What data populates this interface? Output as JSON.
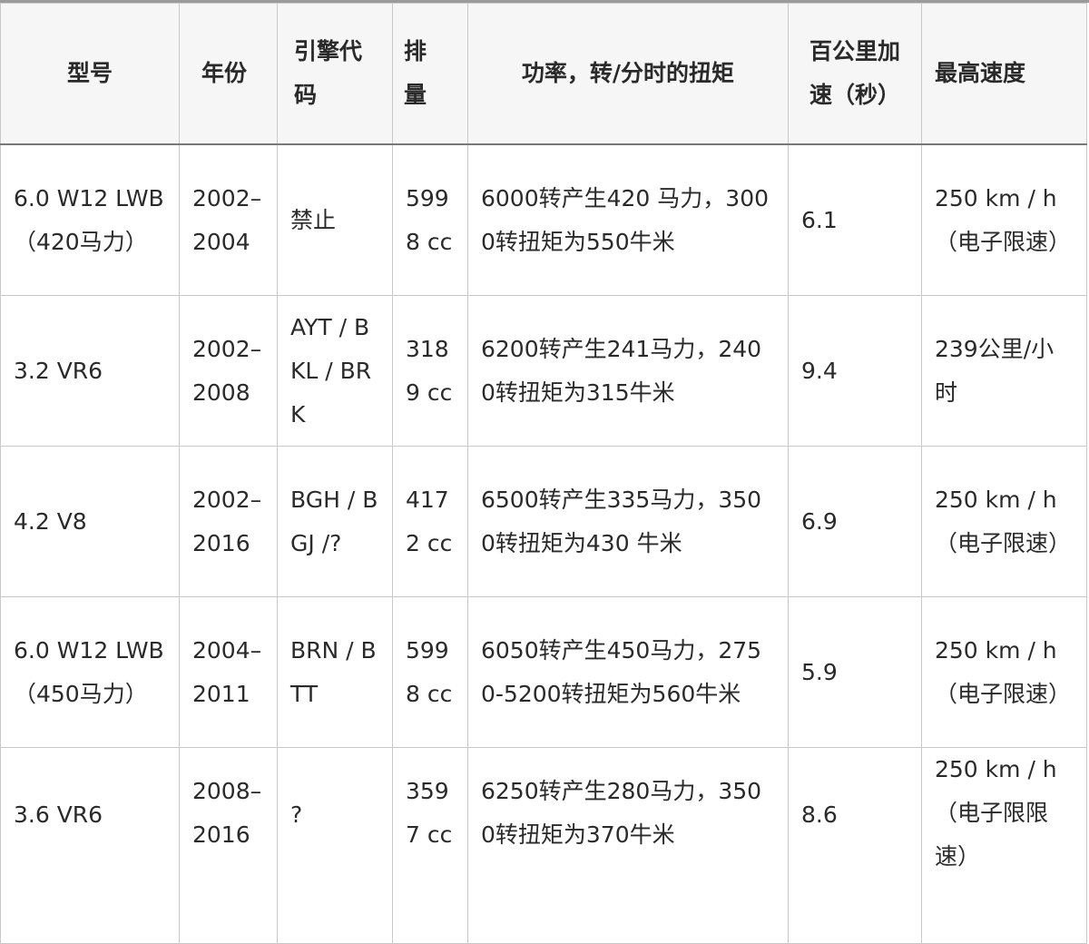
{
  "table": {
    "headers": [
      "型号",
      "年份",
      "引擎代码",
      "排量",
      "功率，转/分时的扭矩",
      "百公里加速（秒）",
      "最高速度"
    ],
    "rows": [
      [
        "6.0 W12 LWB（420马力）",
        "2002–2004",
        "禁止",
        "5998 cc",
        "6000转产生420 马力，3000转扭矩为550牛米",
        "6.1",
        "250 km / h（电子限速）"
      ],
      [
        "3.2 VR6",
        "2002–2008",
        "AYT / BKL / BRK",
        "3189 cc",
        "6200转产生241马力，2400转扭矩为315牛米",
        "9.4",
        "239公里/小时"
      ],
      [
        "4.2 V8",
        "2002–2016",
        "BGH / BGJ /?",
        "4172 cc",
        "6500转产生335马力，3500转扭矩为430 牛米",
        "6.9",
        "250 km / h（电子限速）"
      ],
      [
        "6.0 W12 LWB（450马力）",
        "2004–2011",
        "BRN / BTT",
        "5998 cc",
        "6050转产生450马力，2750-5200转扭矩为560牛米",
        "5.9",
        "250 km / h（电子限速）"
      ],
      [
        "3.6 VR6",
        "2008–2016",
        "?",
        "3597 cc",
        "6250转产生280马力，3500转扭矩为370牛米",
        "8.6",
        "250 km / h（电子限限速）"
      ]
    ]
  }
}
